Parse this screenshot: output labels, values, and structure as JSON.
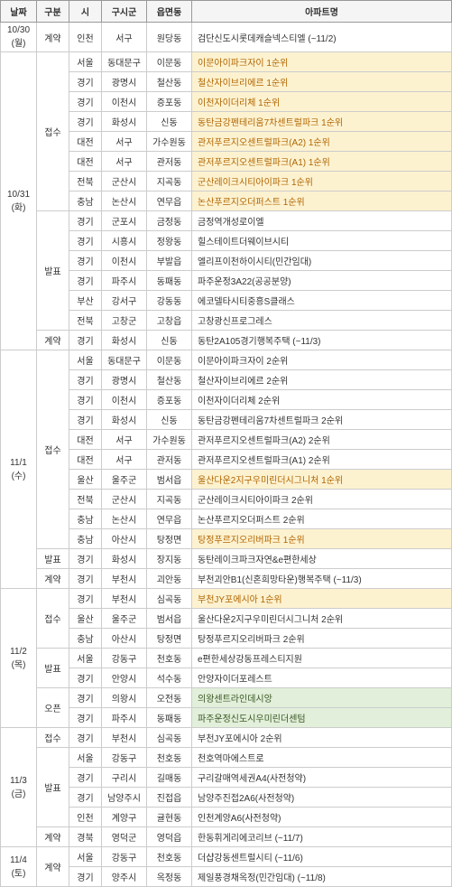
{
  "columns": [
    "날짜",
    "구분",
    "시",
    "구시군",
    "읍면동",
    "아파트명"
  ],
  "rows": [
    {
      "date": "10/30\n(월)",
      "gubun": "계약",
      "si": "인천",
      "gu": "서구",
      "eup": "원당동",
      "apt": "검단신도시롯데캐슬넥스티엘 (~11/2)"
    },
    {
      "date": "10/31\n(화)",
      "gubun": "접수",
      "si": "서울",
      "gu": "동대문구",
      "eup": "이문동",
      "apt": "이문아이파크자이 1순위",
      "hl": "yellow"
    },
    {
      "si": "경기",
      "gu": "광명시",
      "eup": "철산동",
      "apt": "철산자이브리에르 1순위",
      "hl": "yellow"
    },
    {
      "si": "경기",
      "gu": "이천시",
      "eup": "증포동",
      "apt": "이천자이더리체 1순위",
      "hl": "yellow"
    },
    {
      "si": "경기",
      "gu": "화성시",
      "eup": "신동",
      "apt": "동탄금강펜테리움7차센트럴파크 1순위",
      "hl": "yellow"
    },
    {
      "si": "대전",
      "gu": "서구",
      "eup": "가수원동",
      "apt": "관저푸르지오센트럴파크(A2) 1순위",
      "hl": "yellow"
    },
    {
      "si": "대전",
      "gu": "서구",
      "eup": "관저동",
      "apt": "관저푸르지오센트럴파크(A1) 1순위",
      "hl": "yellow"
    },
    {
      "si": "전북",
      "gu": "군산시",
      "eup": "지곡동",
      "apt": "군산레이크시티아이파크 1순위",
      "hl": "yellow"
    },
    {
      "si": "충남",
      "gu": "논산시",
      "eup": "연무읍",
      "apt": "논산푸르지오더퍼스트 1순위",
      "hl": "yellow"
    },
    {
      "gubun": "발표",
      "si": "경기",
      "gu": "군포시",
      "eup": "금정동",
      "apt": "금정역개성로이엘"
    },
    {
      "si": "경기",
      "gu": "시흥시",
      "eup": "정왕동",
      "apt": "힐스테이트더웨이브시티"
    },
    {
      "si": "경기",
      "gu": "이천시",
      "eup": "부발읍",
      "apt": "엘리프이천하이시티(민간임대)"
    },
    {
      "si": "경기",
      "gu": "파주시",
      "eup": "동패동",
      "apt": "파주운정3A22(공공분양)"
    },
    {
      "si": "부산",
      "gu": "강서구",
      "eup": "강동동",
      "apt": "에코델타시티중흥S클래스"
    },
    {
      "si": "전북",
      "gu": "고창군",
      "eup": "고창읍",
      "apt": "고창광신프로그레스"
    },
    {
      "gubun": "계약",
      "si": "경기",
      "gu": "화성시",
      "eup": "신동",
      "apt": "동탄2A105경기행복주택 (~11/3)"
    },
    {
      "date": "11/1\n(수)",
      "gubun": "접수",
      "si": "서울",
      "gu": "동대문구",
      "eup": "이문동",
      "apt": "이문아이파크자이 2순위"
    },
    {
      "si": "경기",
      "gu": "광명시",
      "eup": "철산동",
      "apt": "철산자이브리에르 2순위"
    },
    {
      "si": "경기",
      "gu": "이천시",
      "eup": "증포동",
      "apt": "이천자이더리체 2순위"
    },
    {
      "si": "경기",
      "gu": "화성시",
      "eup": "신동",
      "apt": "동탄금강펜테리움7차센트럴파크 2순위"
    },
    {
      "si": "대전",
      "gu": "서구",
      "eup": "가수원동",
      "apt": "관저푸르지오센트럴파크(A2) 2순위"
    },
    {
      "si": "대전",
      "gu": "서구",
      "eup": "관저동",
      "apt": "관저푸르지오센트럴파크(A1) 2순위"
    },
    {
      "si": "울산",
      "gu": "울주군",
      "eup": "범서읍",
      "apt": "울산다운2지구우미린더시그니처 1순위",
      "hl": "yellow"
    },
    {
      "si": "전북",
      "gu": "군산시",
      "eup": "지곡동",
      "apt": "군산레이크시티아이파크 2순위"
    },
    {
      "si": "충남",
      "gu": "논산시",
      "eup": "연무읍",
      "apt": "논산푸르지오더퍼스트 2순위"
    },
    {
      "si": "충남",
      "gu": "아산시",
      "eup": "탕정면",
      "apt": "탕정푸르지오리버파크 1순위",
      "hl": "yellow"
    },
    {
      "gubun": "발표",
      "si": "경기",
      "gu": "화성시",
      "eup": "장지동",
      "apt": "동탄레이크파크자연&e편한세상"
    },
    {
      "gubun": "계약",
      "si": "경기",
      "gu": "부천시",
      "eup": "괴안동",
      "apt": "부천괴안B1(신혼희망타운)행복주택 (~11/3)"
    },
    {
      "date": "11/2\n(목)",
      "gubun": "접수",
      "si": "경기",
      "gu": "부천시",
      "eup": "심곡동",
      "apt": "부천JY포에시아 1순위",
      "hl": "yellow"
    },
    {
      "si": "울산",
      "gu": "울주군",
      "eup": "범서읍",
      "apt": "울산다운2지구우미린더시그니처 2순위"
    },
    {
      "si": "충남",
      "gu": "아산시",
      "eup": "탕정면",
      "apt": "탕정푸르지오리버파크 2순위"
    },
    {
      "gubun": "발표",
      "si": "서울",
      "gu": "강동구",
      "eup": "천호동",
      "apt": "e편한세상강동프레스티지원"
    },
    {
      "si": "경기",
      "gu": "안양시",
      "eup": "석수동",
      "apt": "안양자이더포레스트"
    },
    {
      "gubun": "오픈",
      "si": "경기",
      "gu": "의왕시",
      "eup": "오전동",
      "apt": "의왕센트라인데시앙",
      "hl": "green"
    },
    {
      "si": "경기",
      "gu": "파주시",
      "eup": "동패동",
      "apt": "파주운정신도시우미린더센텀",
      "hl": "green"
    },
    {
      "date": "11/3\n(금)",
      "gubun": "접수",
      "si": "경기",
      "gu": "부천시",
      "eup": "심곡동",
      "apt": "부천JY포에시아 2순위"
    },
    {
      "gubun": "발표",
      "si": "서울",
      "gu": "강동구",
      "eup": "천호동",
      "apt": "천호역마에스트로"
    },
    {
      "si": "경기",
      "gu": "구리시",
      "eup": "길매동",
      "apt": "구리갈매역세권A4(사전청약)"
    },
    {
      "si": "경기",
      "gu": "남양주시",
      "eup": "진접읍",
      "apt": "남양주진접2A6(사전청약)"
    },
    {
      "si": "인천",
      "gu": "계양구",
      "eup": "귤현동",
      "apt": "인천계양A6(사전청약)"
    },
    {
      "gubun": "계약",
      "si": "경북",
      "gu": "영덕군",
      "eup": "영덕읍",
      "apt": "한동휘게리에코리브 (~11/7)"
    },
    {
      "date": "11/4\n(토)",
      "gubun": "계약",
      "si": "서울",
      "gu": "강동구",
      "eup": "천호동",
      "apt": "더샵강동센트럴시티 (~11/6)"
    },
    {
      "si": "경기",
      "gu": "양주시",
      "eup": "옥정동",
      "apt": "제일풍경채옥정(민간임대) (~11/8)"
    }
  ]
}
